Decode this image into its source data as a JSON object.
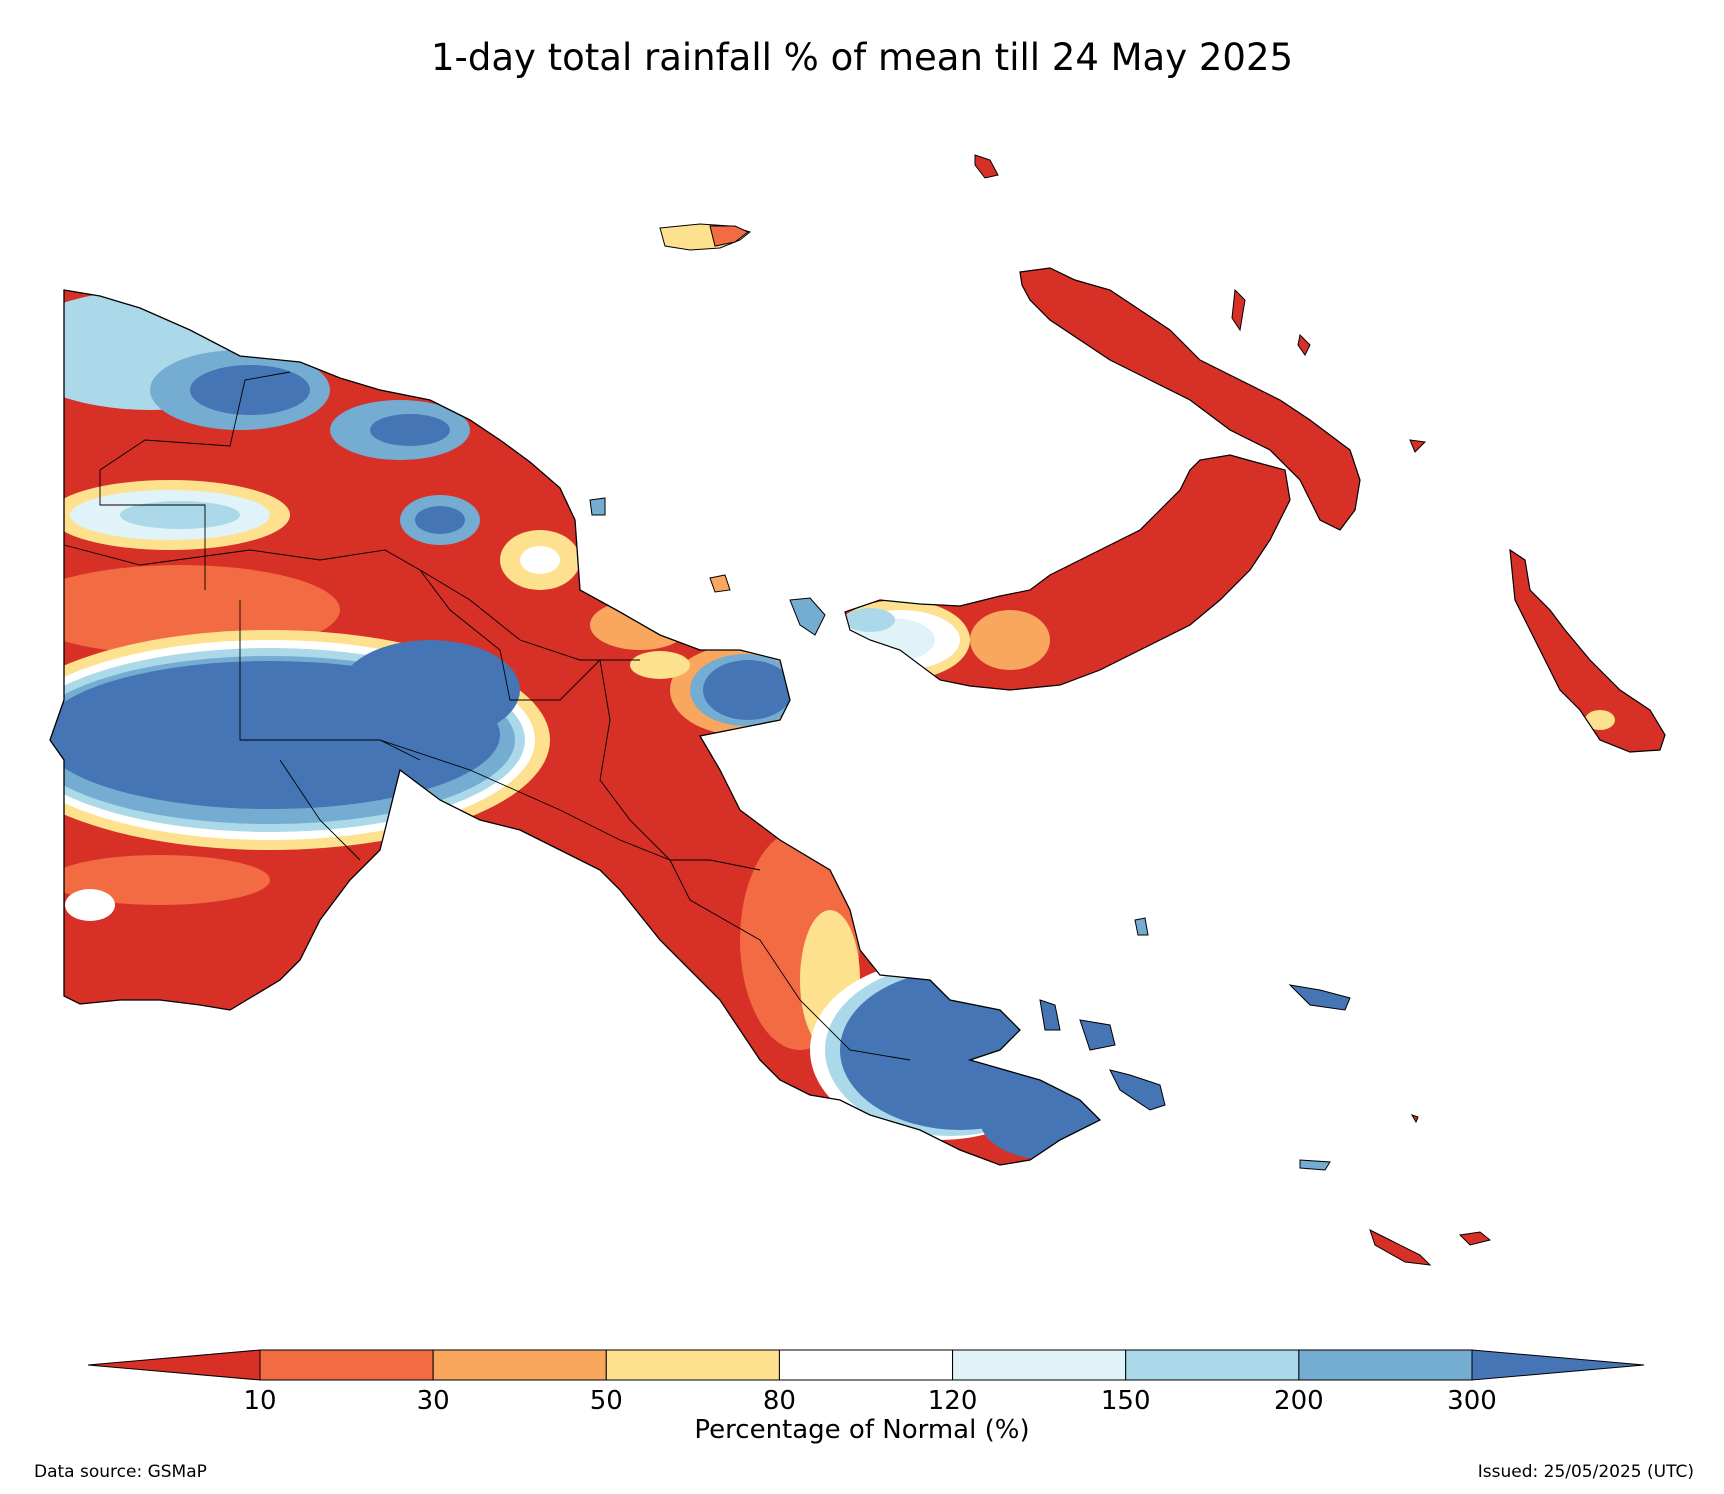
{
  "title": "1-day total rainfall % of mean till 24 May 2025",
  "colorbar": {
    "label": "Percentage of Normal (%)",
    "ticks": [
      "10",
      "30",
      "50",
      "80",
      "120",
      "150",
      "200",
      "300"
    ],
    "colors": [
      "#d73027",
      "#f26b43",
      "#f9a75e",
      "#fde18e",
      "#ffffff",
      "#e0f3f8",
      "#abd9e9",
      "#74add1",
      "#4575b4"
    ]
  },
  "footer": {
    "source": "Data source: GSMaP",
    "issued": "Issued: 25/05/2025 (UTC)"
  }
}
